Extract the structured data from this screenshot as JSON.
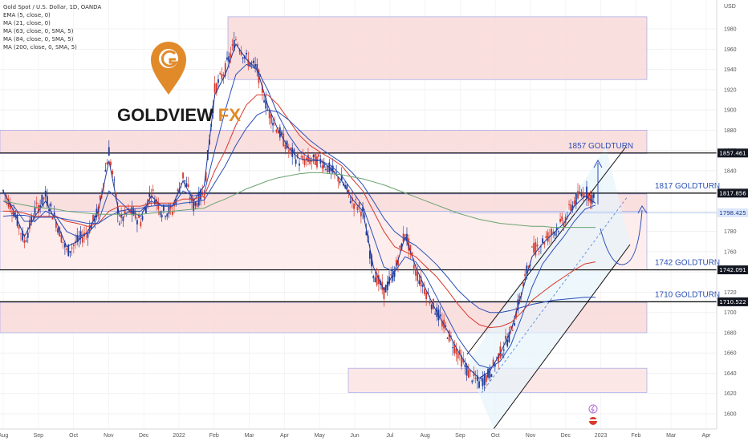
{
  "header": {
    "title": "Gold Spot / U.S. Dollar, 1D, OANDA",
    "indicators": [
      "EMA (5, close, 0)",
      "MA (21, close, 0)",
      "MA (63, close, 0, SMA, 5)",
      "MA (84, close, 0, SMA, 5)",
      "MA (200, close, 0, SMA, 5)"
    ]
  },
  "logo": {
    "brand": "GOLDVIEW",
    "suffix": "FX",
    "brand_color": "#1a1a1a",
    "accent_color": "#e08a2a"
  },
  "chart_data": {
    "type": "candlestick",
    "instrument": "Gold Spot / U.S. Dollar",
    "timeframe": "1D",
    "source": "OANDA",
    "currency": "USD",
    "ylim": [
      1590,
      2005
    ],
    "x_ticks": [
      "Aug",
      "Sep",
      "Oct",
      "Nov",
      "Dec",
      "2022",
      "Feb",
      "Mar",
      "Apr",
      "May",
      "Jun",
      "Jul",
      "Aug",
      "Sep",
      "Oct",
      "Nov",
      "Dec",
      "2023",
      "Feb",
      "Mar",
      "Apr"
    ],
    "y_ticks": [
      1600,
      1620,
      1640,
      1660,
      1680,
      1700,
      1720,
      1740,
      1760,
      1780,
      1800,
      1820,
      1840,
      1860,
      1880,
      1900,
      1920,
      1940,
      1960,
      1980
    ],
    "price_tags": [
      {
        "value": "1857.461",
        "bg": "#131722",
        "fg": "#ffffff"
      },
      {
        "value": "1817.856",
        "bg": "#131722",
        "fg": "#ffffff"
      },
      {
        "value": "1798.425",
        "bg": "#dbe6fb",
        "fg": "#1a3a8a"
      },
      {
        "value": "1742.091",
        "bg": "#131722",
        "fg": "#ffffff"
      },
      {
        "value": "1710.522",
        "bg": "#131722",
        "fg": "#ffffff"
      }
    ],
    "levels": [
      {
        "label": "1857 GOLDTURN",
        "value": 1857.461
      },
      {
        "label": "1817 GOLDTURN",
        "value": 1817.856
      },
      {
        "label": "1742 GOLDTURN",
        "value": 1742.091
      },
      {
        "label": "1710 GOLDTURN",
        "value": 1710.522
      }
    ],
    "current_price": 1798.425,
    "zones": [
      {
        "from": 1930,
        "to": 1992,
        "color": "#f9d9d9"
      },
      {
        "from": 1857,
        "to": 1880,
        "color": "#f9d9d9"
      },
      {
        "from": 1800,
        "to": 1817,
        "color": "#f9d9d9"
      },
      {
        "from": 1742,
        "to": 1800,
        "color": "#fdeaea"
      },
      {
        "from": 1680,
        "to": 1710,
        "color": "#f9d9d9"
      },
      {
        "from": 1621,
        "to": 1645,
        "color": "#fbe3e3"
      }
    ],
    "close_path": [
      1820,
      1800,
      1770,
      1800,
      1815,
      1790,
      1760,
      1770,
      1780,
      1800,
      1860,
      1790,
      1800,
      1790,
      1820,
      1800,
      1800,
      1835,
      1805,
      1820,
      1920,
      1940,
      1970,
      1950,
      1940,
      1900,
      1880,
      1860,
      1850,
      1850,
      1850,
      1840,
      1830,
      1810,
      1800,
      1740,
      1720,
      1740,
      1780,
      1740,
      1720,
      1700,
      1680,
      1660,
      1640,
      1630,
      1640,
      1660,
      1680,
      1720,
      1760,
      1770,
      1780,
      1790,
      1810,
      1820,
      1810
    ],
    "series": [
      {
        "name": "EMA (5, close, 0)",
        "color": "#1f3b9c",
        "values": [
          1820,
          1800,
          1775,
          1795,
          1810,
          1790,
          1765,
          1770,
          1780,
          1800,
          1850,
          1795,
          1800,
          1795,
          1815,
          1805,
          1805,
          1830,
          1810,
          1825,
          1915,
          1935,
          1965,
          1950,
          1940,
          1905,
          1880,
          1862,
          1852,
          1850,
          1850,
          1842,
          1830,
          1812,
          1800,
          1745,
          1722,
          1740,
          1775,
          1745,
          1722,
          1700,
          1682,
          1662,
          1645,
          1635,
          1642,
          1660,
          1682,
          1718,
          1755,
          1768,
          1778,
          1788,
          1805,
          1815,
          1808
        ]
      },
      {
        "name": "MA (21, close, 0)",
        "color": "#2a4fb8",
        "values": [
          1810,
          1805,
          1790,
          1790,
          1800,
          1795,
          1780,
          1775,
          1778,
          1790,
          1820,
          1810,
          1800,
          1800,
          1810,
          1805,
          1805,
          1820,
          1815,
          1818,
          1860,
          1900,
          1935,
          1945,
          1940,
          1920,
          1895,
          1875,
          1860,
          1852,
          1850,
          1845,
          1835,
          1820,
          1805,
          1775,
          1745,
          1740,
          1755,
          1750,
          1735,
          1715,
          1695,
          1675,
          1660,
          1648,
          1645,
          1652,
          1668,
          1695,
          1725,
          1748,
          1762,
          1775,
          1790,
          1802,
          1806
        ]
      },
      {
        "name": "MA (63, close, 0, SMA, 5)",
        "color": "#d8392b",
        "values": [
          1800,
          1800,
          1798,
          1795,
          1795,
          1795,
          1790,
          1788,
          1785,
          1788,
          1800,
          1805,
          1805,
          1805,
          1808,
          1808,
          1808,
          1812,
          1812,
          1815,
          1840,
          1860,
          1885,
          1905,
          1915,
          1915,
          1905,
          1890,
          1875,
          1865,
          1858,
          1852,
          1845,
          1832,
          1820,
          1800,
          1780,
          1765,
          1760,
          1755,
          1745,
          1735,
          1722,
          1708,
          1696,
          1688,
          1685,
          1686,
          1690,
          1700,
          1712,
          1720,
          1728,
          1735,
          1742,
          1748,
          1750
        ]
      },
      {
        "name": "MA (84, close, 0, SMA, 5)",
        "color": "#2a4fb8",
        "values": [
          1795,
          1796,
          1796,
          1794,
          1794,
          1794,
          1792,
          1790,
          1788,
          1788,
          1795,
          1800,
          1802,
          1803,
          1805,
          1806,
          1806,
          1808,
          1809,
          1811,
          1828,
          1845,
          1865,
          1882,
          1895,
          1900,
          1898,
          1890,
          1880,
          1870,
          1862,
          1855,
          1848,
          1838,
          1826,
          1810,
          1793,
          1780,
          1772,
          1766,
          1757,
          1747,
          1735,
          1722,
          1712,
          1704,
          1700,
          1700,
          1702,
          1705,
          1708,
          1710,
          1712,
          1713,
          1714,
          1715,
          1715
        ]
      },
      {
        "name": "MA (200, close, 0, SMA, 5)",
        "color": "#6aa36f",
        "values": [
          1810,
          1808,
          1806,
          1804,
          1803,
          1802,
          1800,
          1799,
          1798,
          1797,
          1797,
          1797,
          1797,
          1797,
          1798,
          1799,
          1800,
          1801,
          1802,
          1803,
          1808,
          1812,
          1817,
          1822,
          1826,
          1830,
          1833,
          1835,
          1837,
          1838,
          1838,
          1837,
          1836,
          1834,
          1832,
          1829,
          1826,
          1822,
          1818,
          1814,
          1810,
          1806,
          1802,
          1798,
          1795,
          1792,
          1790,
          1788,
          1787,
          1786,
          1785,
          1785,
          1784,
          1784,
          1784,
          1784,
          1784
        ]
      }
    ]
  }
}
